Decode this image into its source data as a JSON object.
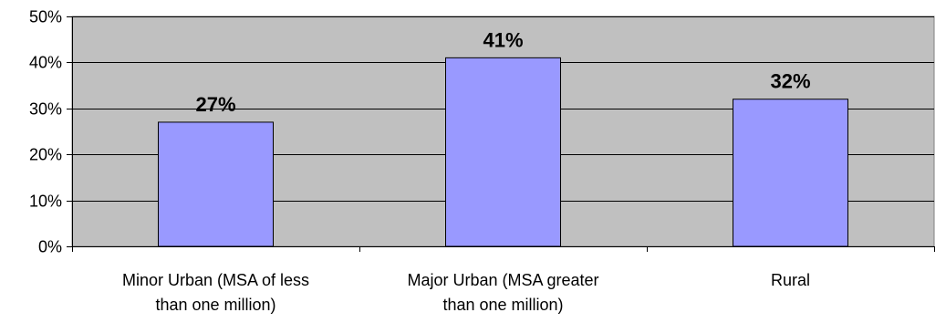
{
  "chart_data": {
    "type": "bar",
    "title": "",
    "xlabel": "",
    "ylabel": "",
    "categories": [
      [
        "Minor Urban (MSA of less",
        "than one million)"
      ],
      [
        "Major Urban (MSA greater",
        "than one million)"
      ],
      [
        "Rural"
      ]
    ],
    "values": [
      27,
      41,
      32
    ],
    "data_labels": [
      "27%",
      "41%",
      "32%"
    ],
    "yticks": [
      0,
      10,
      20,
      30,
      40,
      50
    ],
    "ytick_labels": [
      "0%",
      "10%",
      "20%",
      "30%",
      "40%",
      "50%"
    ],
    "ylim": [
      0,
      50
    ],
    "grid": true,
    "legend": "none",
    "colors": {
      "bar_fill": "#9999ff",
      "bar_stroke": "#000000",
      "plot_background": "#c0c0c0",
      "gridline": "#000000"
    }
  }
}
